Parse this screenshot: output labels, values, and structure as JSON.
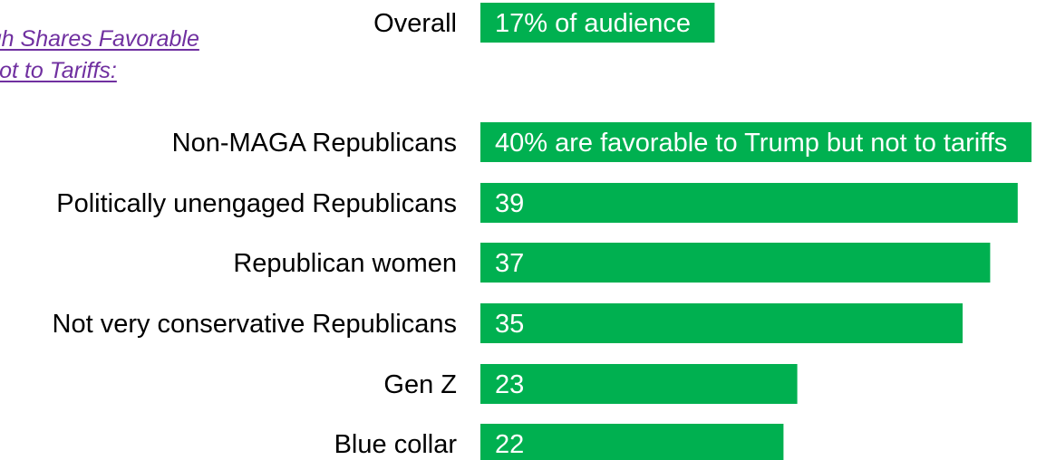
{
  "subtitle": {
    "line1": "s With High Shares Favorable",
    "line2": "mp, But Not to Tariffs:"
  },
  "colors": {
    "bar": "#00b050",
    "subtitle": "#7030a0",
    "label": "#000000",
    "bar_text": "#ffffff"
  },
  "chart_data": {
    "type": "bar",
    "orientation": "horizontal",
    "title": "",
    "xlabel": "",
    "ylabel": "",
    "xlim": [
      0,
      40
    ],
    "grid": false,
    "legend": "none",
    "categories": [
      "Overall",
      "Non-MAGA Republicans",
      "Politically unengaged Republicans",
      "Republican women",
      "Not very conservative Republicans",
      "Gen Z",
      "Blue collar"
    ],
    "values": [
      17,
      40,
      39,
      37,
      35,
      23,
      22
    ],
    "data_labels": [
      "17% of audience",
      "40% are favorable to Trump but not to tariffs",
      "39",
      "37",
      "35",
      "23",
      "22"
    ]
  }
}
